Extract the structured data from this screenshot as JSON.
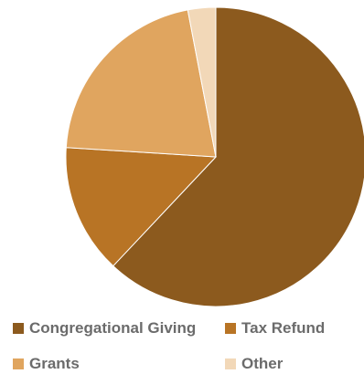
{
  "chart_data": {
    "type": "pie",
    "title": "",
    "categories": [
      "Congregational Giving",
      "Tax Refund",
      "Grants",
      "Other"
    ],
    "values": [
      62,
      14,
      21,
      3
    ],
    "colors": [
      "#8c5a1e",
      "#b87425",
      "#e0a55f",
      "#f2d8b8"
    ],
    "start_angle": "top",
    "direction": "clockwise",
    "legend_position": "bottom"
  }
}
